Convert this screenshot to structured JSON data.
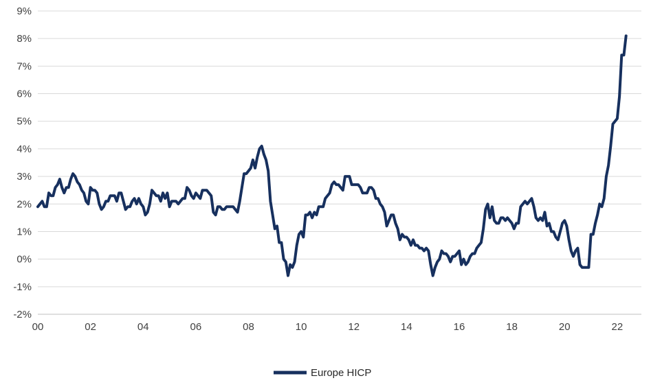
{
  "chart_data": {
    "type": "line",
    "title": "",
    "xlabel": "",
    "ylabel": "",
    "ylim": [
      -2,
      9
    ],
    "y_step": 1,
    "y_tick_suffix": "%",
    "grid": "horizontal",
    "legend_position": "bottom-center",
    "x_start": "2000-01",
    "x_frequency": "monthly",
    "x_total_slots": 276,
    "x_ticks": [
      {
        "index": 0,
        "label": "00"
      },
      {
        "index": 24,
        "label": "02"
      },
      {
        "index": 48,
        "label": "04"
      },
      {
        "index": 72,
        "label": "06"
      },
      {
        "index": 96,
        "label": "08"
      },
      {
        "index": 120,
        "label": "10"
      },
      {
        "index": 144,
        "label": "12"
      },
      {
        "index": 168,
        "label": "14"
      },
      {
        "index": 192,
        "label": "16"
      },
      {
        "index": 216,
        "label": "18"
      },
      {
        "index": 240,
        "label": "20"
      },
      {
        "index": 264,
        "label": "22"
      }
    ],
    "series": [
      {
        "name": "Europe HICP",
        "color": "#17305e",
        "values": [
          1.9,
          2.0,
          2.1,
          1.9,
          1.9,
          2.4,
          2.3,
          2.3,
          2.6,
          2.7,
          2.9,
          2.6,
          2.4,
          2.6,
          2.6,
          2.9,
          3.1,
          3.0,
          2.8,
          2.7,
          2.5,
          2.4,
          2.1,
          2.0,
          2.6,
          2.5,
          2.5,
          2.4,
          2.0,
          1.8,
          1.9,
          2.1,
          2.1,
          2.3,
          2.3,
          2.3,
          2.1,
          2.4,
          2.4,
          2.1,
          1.8,
          1.9,
          1.9,
          2.1,
          2.2,
          2.0,
          2.2,
          2.0,
          1.9,
          1.6,
          1.7,
          2.0,
          2.5,
          2.4,
          2.3,
          2.3,
          2.1,
          2.4,
          2.2,
          2.4,
          1.9,
          2.1,
          2.1,
          2.1,
          2.0,
          2.1,
          2.2,
          2.2,
          2.6,
          2.5,
          2.3,
          2.2,
          2.4,
          2.3,
          2.2,
          2.5,
          2.5,
          2.5,
          2.4,
          2.3,
          1.7,
          1.6,
          1.9,
          1.9,
          1.8,
          1.8,
          1.9,
          1.9,
          1.9,
          1.9,
          1.8,
          1.7,
          2.1,
          2.6,
          3.1,
          3.1,
          3.2,
          3.3,
          3.6,
          3.3,
          3.7,
          4.0,
          4.1,
          3.8,
          3.6,
          3.2,
          2.1,
          1.6,
          1.1,
          1.2,
          0.6,
          0.6,
          0.0,
          -0.1,
          -0.6,
          -0.2,
          -0.3,
          -0.1,
          0.5,
          0.9,
          1.0,
          0.8,
          1.6,
          1.6,
          1.7,
          1.5,
          1.7,
          1.6,
          1.9,
          1.9,
          1.9,
          2.2,
          2.3,
          2.4,
          2.7,
          2.8,
          2.7,
          2.7,
          2.6,
          2.5,
          3.0,
          3.0,
          3.0,
          2.7,
          2.7,
          2.7,
          2.7,
          2.6,
          2.4,
          2.4,
          2.4,
          2.6,
          2.6,
          2.5,
          2.2,
          2.2,
          2.0,
          1.9,
          1.7,
          1.2,
          1.4,
          1.6,
          1.6,
          1.3,
          1.1,
          0.7,
          0.9,
          0.8,
          0.8,
          0.7,
          0.5,
          0.7,
          0.5,
          0.5,
          0.4,
          0.4,
          0.3,
          0.4,
          0.3,
          -0.2,
          -0.6,
          -0.3,
          -0.1,
          0.0,
          0.3,
          0.2,
          0.2,
          0.1,
          -0.1,
          0.1,
          0.1,
          0.2,
          0.3,
          -0.2,
          0.0,
          -0.2,
          -0.1,
          0.1,
          0.2,
          0.2,
          0.4,
          0.5,
          0.6,
          1.1,
          1.8,
          2.0,
          1.5,
          1.9,
          1.4,
          1.3,
          1.3,
          1.5,
          1.5,
          1.4,
          1.5,
          1.4,
          1.3,
          1.1,
          1.3,
          1.3,
          1.9,
          2.0,
          2.1,
          2.0,
          2.1,
          2.2,
          1.9,
          1.5,
          1.4,
          1.5,
          1.4,
          1.7,
          1.2,
          1.3,
          1.0,
          1.0,
          0.8,
          0.7,
          1.0,
          1.3,
          1.4,
          1.2,
          0.7,
          0.3,
          0.1,
          0.3,
          0.4,
          -0.2,
          -0.3,
          -0.3,
          -0.3,
          -0.3,
          0.9,
          0.9,
          1.3,
          1.6,
          2.0,
          1.9,
          2.2,
          3.0,
          3.4,
          4.1,
          4.9,
          5.0,
          5.1,
          5.9,
          7.4,
          7.4,
          8.1
        ]
      }
    ]
  }
}
